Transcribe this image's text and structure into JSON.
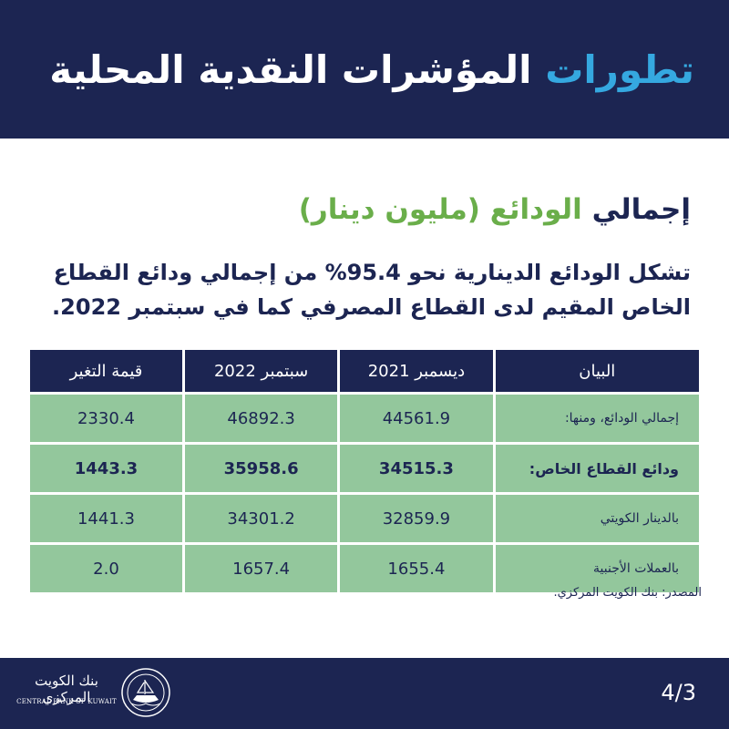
{
  "header": {
    "title_main": "المؤشرات النقدية المحلية",
    "title_accent": "تطورات"
  },
  "section": {
    "title_main": "إجمالي",
    "title_green": "الودائع (مليون دينار)"
  },
  "intro_text": "تشكل الودائع الدينارية نحو 95.4% من إجمالي ودائع القطاع الخاص المقيم لدى القطاع المصرفي كما في سبتمبر 2022.",
  "table": {
    "headers": [
      "البيان",
      "ديسمبر 2021",
      "سبتمبر 2022",
      "قيمة التغير"
    ],
    "rows": [
      {
        "label": "إجمالي الودائع، ومنها:",
        "dec_2021": "44561.9",
        "sep_2022": "46892.3",
        "change": "2330.4"
      },
      {
        "label": "ودائع القطاع الخاص:",
        "dec_2021": "34515.3",
        "sep_2022": "35958.6",
        "change": "1443.3"
      },
      {
        "label": "بالدينار الكويتي",
        "dec_2021": "32859.9",
        "sep_2022": "34301.2",
        "change": "1441.3"
      },
      {
        "label": "بالعملات الأجنبية",
        "dec_2021": "1655.4",
        "sep_2022": "1657.4",
        "change": "2.0"
      }
    ]
  },
  "source_text": "المصدر: بنك الكويت المركزي.",
  "footer": {
    "page": "4/3",
    "logo_ar": "بنك الكويت المركزي",
    "logo_en": "CENTRAL BANK OF KUWAIT"
  },
  "colors": {
    "navy": "#1c2552",
    "accent_blue": "#35a8e0",
    "green": "#6aae4a",
    "cell_green": "#93c79c"
  }
}
